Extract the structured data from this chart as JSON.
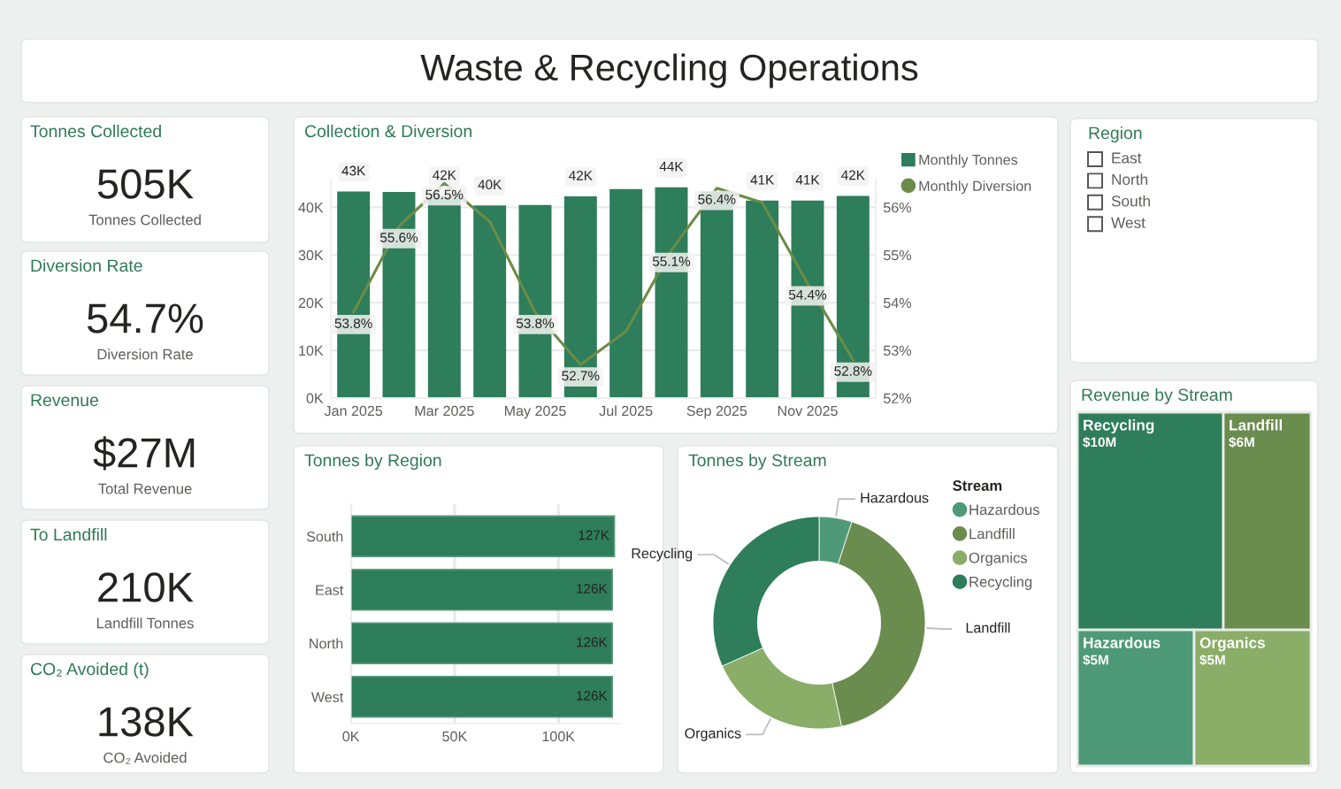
{
  "chart_data": [
    {
      "type": "other",
      "title": "Waste & Recycling Operations"
    },
    {
      "type": "other",
      "title": "Tonnes Collected",
      "annotations": [
        "505K",
        "Tonnes Collected"
      ]
    },
    {
      "type": "other",
      "title": "Diversion Rate",
      "annotations": [
        "54.7%",
        "Diversion Rate"
      ]
    },
    {
      "type": "other",
      "title": "Revenue",
      "annotations": [
        "$27M",
        "Total Revenue"
      ]
    },
    {
      "type": "other",
      "title": "To Landfill",
      "annotations": [
        "210K",
        "Landfill Tonnes"
      ]
    },
    {
      "type": "other",
      "title": "CO₂ Avoided (t)",
      "annotations": [
        "138K",
        "CO₂ Avoided"
      ]
    },
    {
      "type": "bar",
      "title": "Collection & Diversion",
      "categories": [
        "Jan 2025",
        null,
        "Mar 2025",
        null,
        "May 2025",
        null,
        "Jul 2025",
        null,
        "Sep 2025",
        null,
        "Nov 2025",
        null
      ],
      "series": [
        {
          "name": "Monthly Tonnes",
          "type": "bar",
          "color": "#2e7d5b",
          "values": [
            43300,
            43200,
            42400,
            40400,
            40500,
            42300,
            43800,
            44200,
            43300,
            41400,
            41400,
            42400
          ],
          "value_labels": [
            "43K",
            null,
            "42K",
            "40K",
            null,
            "42K",
            null,
            "44K",
            null,
            "41K",
            "41K",
            "42K"
          ]
        },
        {
          "name": "Monthly Diversion",
          "type": "line",
          "axis": "y2",
          "color": "#6b8c47",
          "values": [
            53.8,
            55.6,
            56.5,
            55.7,
            53.8,
            52.7,
            53.4,
            55.1,
            56.4,
            56.1,
            54.4,
            52.8
          ],
          "value_labels": [
            "53.8%",
            "55.6%",
            "56.5%",
            null,
            "53.8%",
            "52.7%",
            null,
            "55.1%",
            "56.4%",
            null,
            "54.4%",
            "52.8%"
          ]
        }
      ],
      "ylim": [
        0,
        46000
      ],
      "yticks": [
        {
          "value": 0,
          "label": "0K"
        },
        {
          "value": 10000,
          "label": "10K"
        },
        {
          "value": 20000,
          "label": "20K"
        },
        {
          "value": 30000,
          "label": "30K"
        },
        {
          "value": 40000,
          "label": "40K"
        }
      ],
      "y2lim": [
        52,
        56.6
      ],
      "y2ticks": [
        {
          "value": 52,
          "label": "52%"
        },
        {
          "value": 53,
          "label": "53%"
        },
        {
          "value": 54,
          "label": "54%"
        },
        {
          "value": 55,
          "label": "55%"
        },
        {
          "value": 56,
          "label": "56%"
        }
      ],
      "grid": "y",
      "legend": "right"
    },
    {
      "type": "other",
      "title": "Region",
      "categories": [
        "East",
        "North",
        "South",
        "West"
      ]
    },
    {
      "type": "bar",
      "orientation": "horizontal",
      "title": "Tonnes by Region",
      "categories": [
        "South",
        "East",
        "North",
        "West"
      ],
      "values": [
        127000,
        126000,
        126000,
        126000
      ],
      "value_labels": [
        "127K",
        "126K",
        "126K",
        "126K"
      ],
      "color": "#2e7d5b",
      "xlim": [
        0,
        130000
      ],
      "xticks": [
        {
          "value": 0,
          "label": "0K"
        },
        {
          "value": 50000,
          "label": "50K"
        },
        {
          "value": 100000,
          "label": "100K"
        }
      ],
      "grid": "x"
    },
    {
      "type": "donut",
      "title": "Tonnes by Stream",
      "categories": [
        "Hazardous",
        "Landfill",
        "Organics",
        "Recycling"
      ],
      "values": [
        5,
        41.6,
        21.7,
        31.7
      ],
      "colors": [
        "#4e9a78",
        "#6a8c4e",
        "#8aad68",
        "#2e7d5b"
      ],
      "legend_title": "Stream",
      "legend": "right"
    },
    {
      "type": "other",
      "title": "Revenue by Stream",
      "categories": [
        "Recycling",
        "Landfill",
        "Hazardous",
        "Organics"
      ],
      "values": [
        10,
        6,
        5,
        5
      ],
      "value_labels": [
        "$10M",
        "$6M",
        "$5M",
        "$5M"
      ],
      "colors": [
        "#2e7d5b",
        "#6a8c4e",
        "#4e9a78",
        "#8aad68"
      ]
    }
  ]
}
